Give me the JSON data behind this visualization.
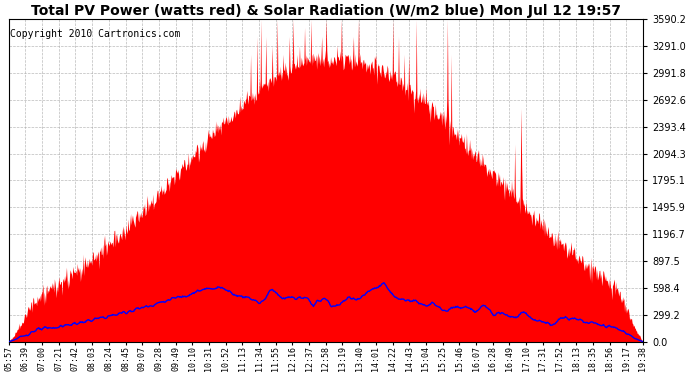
{
  "title": "Total PV Power (watts red) & Solar Radiation (W/m2 blue) Mon Jul 12 19:57",
  "copyright": "Copyright 2010 Cartronics.com",
  "background_color": "#ffffff",
  "plot_bg_color": "#ffffff",
  "yticks": [
    0.0,
    299.2,
    598.4,
    897.5,
    1196.7,
    1495.9,
    1795.1,
    2094.3,
    2393.4,
    2692.6,
    2991.8,
    3291.0,
    3590.2
  ],
  "ymax": 3590.2,
  "ymin": 0.0,
  "x_labels": [
    "05:57",
    "06:39",
    "07:00",
    "07:21",
    "07:42",
    "08:03",
    "08:24",
    "08:45",
    "09:07",
    "09:28",
    "09:49",
    "10:10",
    "10:31",
    "10:52",
    "11:13",
    "11:34",
    "11:55",
    "12:16",
    "12:37",
    "12:58",
    "13:19",
    "13:40",
    "14:01",
    "14:22",
    "14:43",
    "15:04",
    "15:25",
    "15:46",
    "16:07",
    "16:28",
    "16:49",
    "17:10",
    "17:31",
    "17:52",
    "18:13",
    "18:35",
    "18:56",
    "19:17",
    "19:38"
  ],
  "red_color": "#ff0000",
  "blue_color": "#0000ff",
  "grid_color": "#aaaaaa",
  "title_fontsize": 10,
  "copyright_fontsize": 7,
  "tick_fontsize": 6,
  "ytick_fontsize": 7
}
